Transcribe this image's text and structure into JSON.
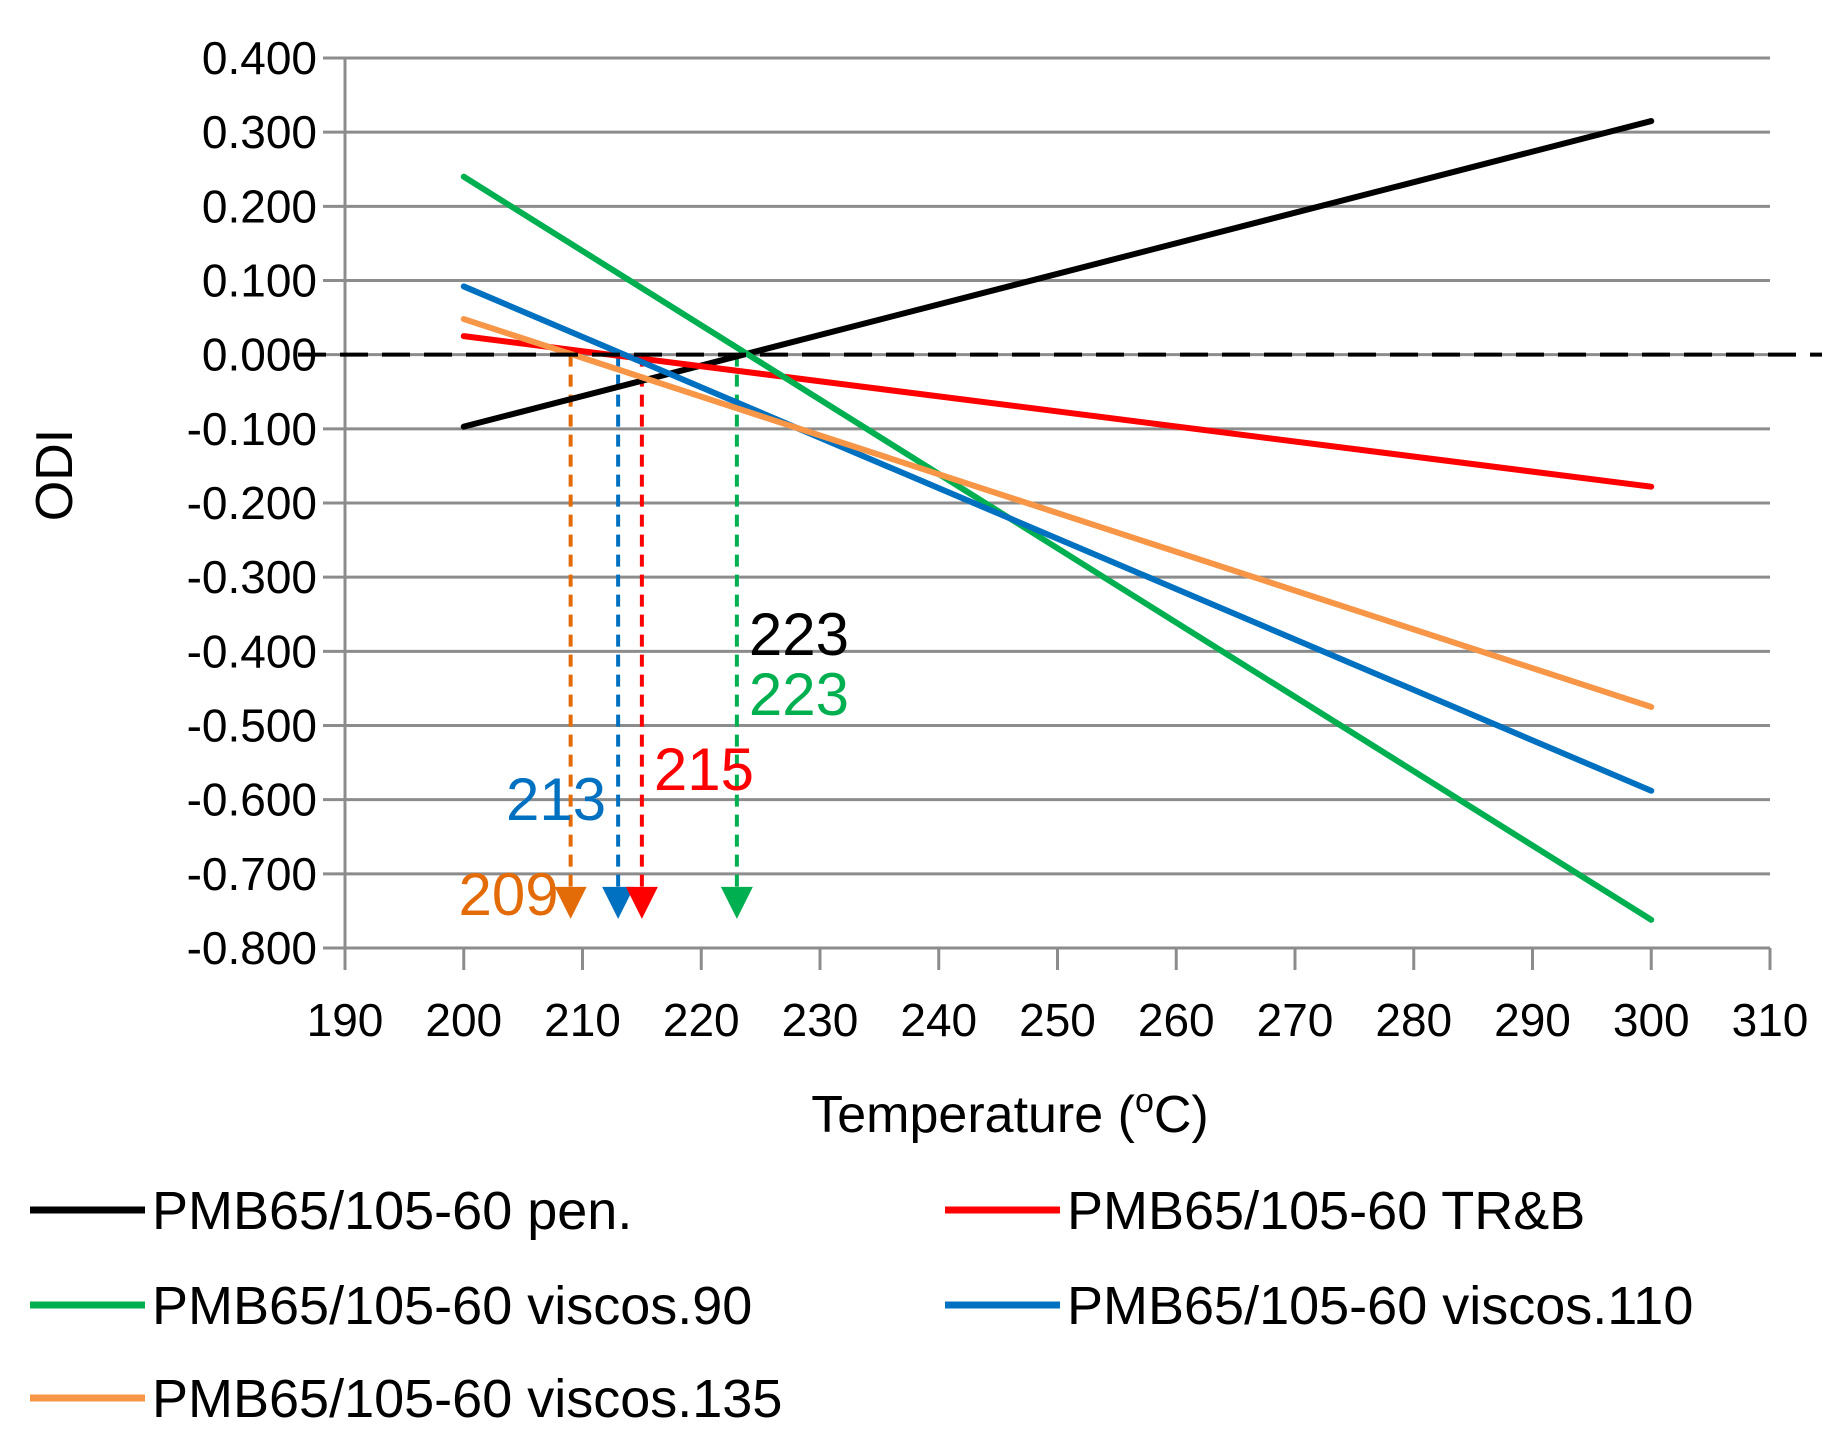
{
  "chart_data": {
    "type": "line",
    "title": "",
    "xlabel": "Temperature (",
    "xlabel_sup": "o",
    "xlabel_end": "C)",
    "ylabel": "ODI",
    "xlim": [
      190,
      310
    ],
    "ylim": [
      -0.8,
      0.4
    ],
    "xticks": [
      190,
      200,
      210,
      220,
      230,
      240,
      250,
      260,
      270,
      280,
      290,
      300,
      310
    ],
    "yticks": [
      -0.8,
      -0.7,
      -0.6,
      -0.5,
      -0.4,
      -0.3,
      -0.2,
      -0.1,
      0.0,
      0.1,
      0.2,
      0.3,
      0.4
    ],
    "xtick_labels": [
      "190",
      "200",
      "210",
      "220",
      "230",
      "240",
      "250",
      "260",
      "270",
      "280",
      "290",
      "300",
      "310"
    ],
    "ytick_labels": [
      "-0.800",
      "-0.700",
      "-0.600",
      "-0.500",
      "-0.400",
      "-0.300",
      "-0.200",
      "-0.100",
      "0.000",
      "0.100",
      "0.200",
      "0.300",
      "0.400"
    ],
    "grid": true,
    "reference_line": {
      "y": 0,
      "style": "dashed",
      "color": "#000000"
    },
    "series": [
      {
        "name": "PMB65/105-60 pen.",
        "color": "#000000",
        "x": [
          200,
          300
        ],
        "y": [
          -0.097,
          0.315
        ]
      },
      {
        "name": "PMB65/105-60 TR&B",
        "color": "#ff0000",
        "x": [
          200,
          300
        ],
        "y": [
          0.025,
          -0.178
        ]
      },
      {
        "name": "PMB65/105-60 viscos.90",
        "color": "#00b050",
        "x": [
          200,
          300
        ],
        "y": [
          0.24,
          -0.762
        ]
      },
      {
        "name": "PMB65/105-60 viscos.110",
        "color": "#0070c0",
        "x": [
          200,
          300
        ],
        "y": [
          0.092,
          -0.588
        ]
      },
      {
        "name": "PMB65/105-60 viscos.135",
        "color": "#f79646",
        "x": [
          200,
          300
        ],
        "y": [
          0.048,
          -0.475
        ]
      }
    ],
    "annotations": [
      {
        "label": "209",
        "x": 209,
        "color": "#e36c09",
        "arrow_end_y": -0.758
      },
      {
        "label": "213",
        "x": 213,
        "color": "#0070c0",
        "arrow_end_y": -0.758
      },
      {
        "label": "215",
        "x": 215,
        "color": "#ff0000",
        "arrow_end_y": -0.758
      },
      {
        "label": "223",
        "x": 223,
        "color": "#000000",
        "arrow_end_y": null
      },
      {
        "label": "223",
        "x": 223,
        "color": "#00b050",
        "arrow_end_y": -0.758
      }
    ],
    "legend": {
      "position": "bottom",
      "columns": 2
    }
  }
}
